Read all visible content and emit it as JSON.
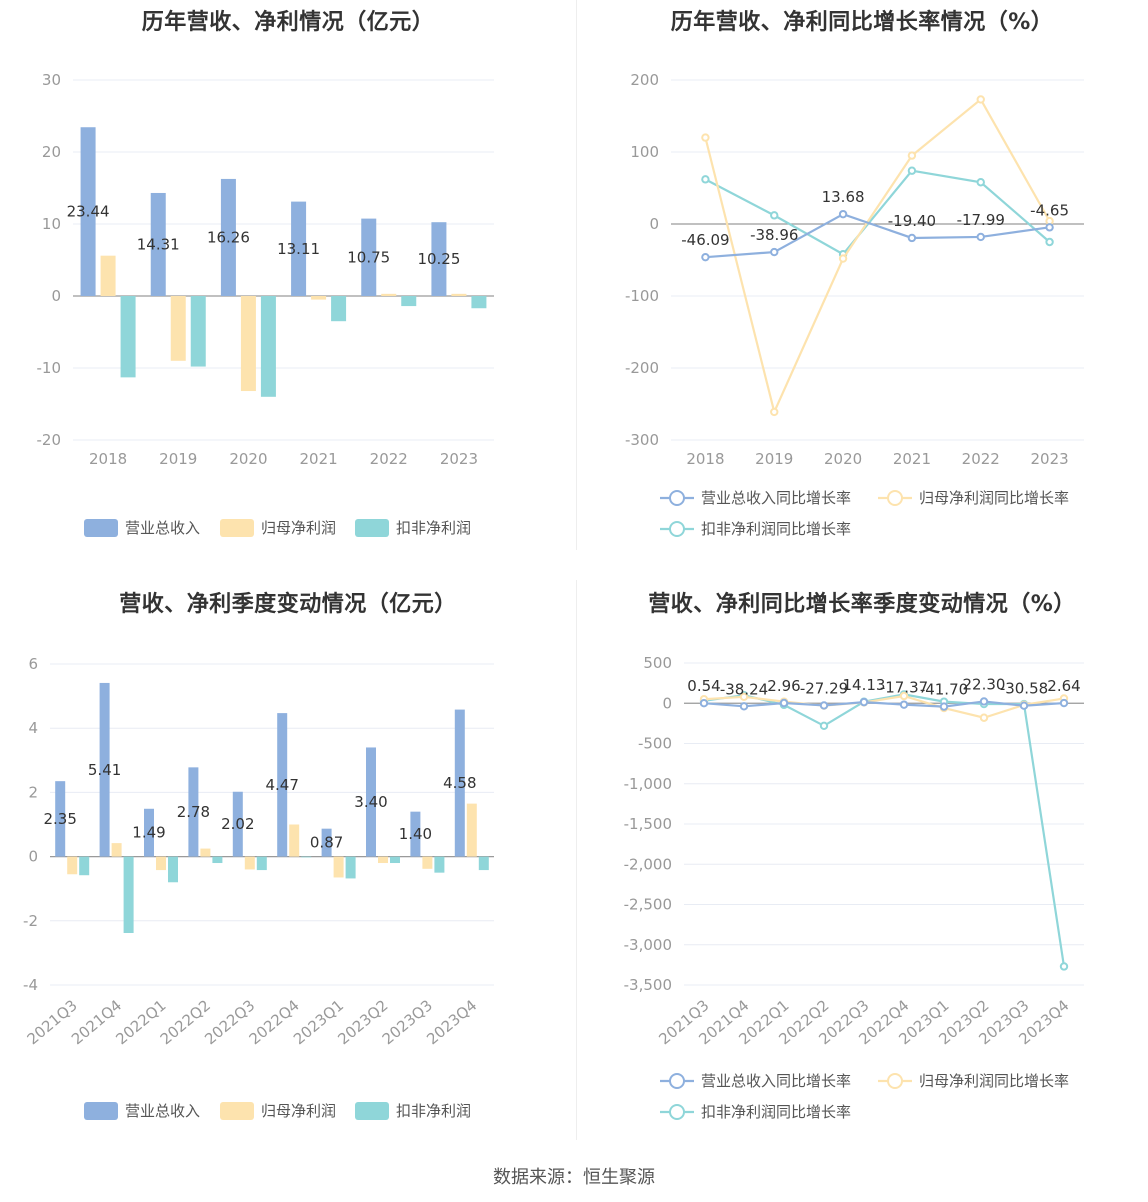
{
  "colors": {
    "revenue": "#8eb0de",
    "net_profit": "#fde3ae",
    "deducted_profit": "#8fd6d9"
  },
  "source": "数据来源：恒生聚源",
  "chart_data": [
    {
      "type": "bar",
      "title": "历年营收、净利情况（亿元）",
      "categories": [
        "2018",
        "2019",
        "2020",
        "2021",
        "2022",
        "2023"
      ],
      "ylim": [
        -20,
        30
      ],
      "yticks": [
        "30",
        "20",
        "10",
        "0",
        "-10",
        "-20"
      ],
      "series": [
        {
          "name": "营业总收入",
          "values": [
            23.44,
            14.31,
            16.26,
            13.11,
            10.75,
            10.25
          ],
          "labels": [
            "23.44",
            "14.31",
            "16.26",
            "13.11",
            "10.75",
            "10.25"
          ]
        },
        {
          "name": "归母净利润",
          "values": [
            5.6,
            -9.0,
            -13.2,
            -0.5,
            0.3,
            0.3
          ]
        },
        {
          "name": "扣非净利润",
          "values": [
            -11.3,
            -9.8,
            -14.0,
            -3.5,
            -1.4,
            -1.7
          ]
        }
      ],
      "legend": "bottom"
    },
    {
      "type": "line",
      "title": "历年营收、净利同比增长率情况（%）",
      "categories": [
        "2018",
        "2019",
        "2020",
        "2021",
        "2022",
        "2023"
      ],
      "ylim": [
        -300,
        200
      ],
      "yticks": [
        "200",
        "100",
        "0",
        "-100",
        "-200",
        "-300"
      ],
      "series": [
        {
          "name": "营业总收入同比增长率",
          "values": [
            -46.09,
            -38.96,
            13.68,
            -19.4,
            -17.99,
            -4.65
          ],
          "labels": [
            "-46.09",
            "-38.96",
            "13.68",
            "-19.40",
            "-17.99",
            "-4.65"
          ]
        },
        {
          "name": "归母净利润同比增长率",
          "values": [
            120,
            -261,
            -48,
            95,
            173,
            4
          ]
        },
        {
          "name": "扣非净利润同比增长率",
          "values": [
            62,
            12,
            -42,
            74,
            58,
            -25
          ]
        }
      ],
      "legend": "bottom"
    },
    {
      "type": "bar",
      "title": "营收、净利季度变动情况（亿元）",
      "categories": [
        "2021Q3",
        "2021Q4",
        "2022Q1",
        "2022Q2",
        "2022Q3",
        "2022Q4",
        "2023Q1",
        "2023Q2",
        "2023Q3",
        "2023Q4"
      ],
      "ylim": [
        -4,
        6
      ],
      "yticks": [
        "6",
        "4",
        "2",
        "0",
        "-2",
        "-4"
      ],
      "series": [
        {
          "name": "营业总收入",
          "values": [
            2.35,
            5.41,
            1.49,
            2.78,
            2.02,
            4.47,
            0.87,
            3.4,
            1.4,
            4.58
          ],
          "labels": [
            "2.35",
            "5.41",
            "1.49",
            "2.78",
            "2.02",
            "4.47",
            "0.87",
            "3.40",
            "1.40",
            "4.58"
          ]
        },
        {
          "name": "归母净利润",
          "values": [
            -0.55,
            0.42,
            -0.42,
            0.25,
            -0.4,
            1.0,
            -0.65,
            -0.2,
            -0.38,
            1.65
          ]
        },
        {
          "name": "扣非净利润",
          "values": [
            -0.58,
            -2.38,
            -0.8,
            -0.2,
            -0.42,
            0.0,
            -0.68,
            -0.2,
            -0.5,
            -0.42
          ]
        }
      ],
      "legend": "bottom"
    },
    {
      "type": "line",
      "title": "营收、净利同比增长率季度变动情况（%）",
      "categories": [
        "2021Q3",
        "2021Q4",
        "2022Q1",
        "2022Q2",
        "2022Q3",
        "2022Q4",
        "2023Q1",
        "2023Q2",
        "2023Q3",
        "2023Q4"
      ],
      "ylim": [
        -3500,
        500
      ],
      "yticks": [
        "500",
        "0",
        "-500",
        "-1,000",
        "-1,500",
        "-2,000",
        "-2,500",
        "-3,000",
        "-3,500"
      ],
      "series": [
        {
          "name": "营业总收入同比增长率",
          "values": [
            0.54,
            -38.24,
            2.96,
            -27.29,
            14.13,
            -17.37,
            -41.7,
            22.3,
            -30.58,
            2.64
          ],
          "labels": [
            "0.54",
            "-38.24",
            "2.96",
            "-27.29",
            "14.13",
            "-17.37",
            "-41.70",
            "22.30",
            "-30.58",
            "2.64"
          ]
        },
        {
          "name": "归母净利润同比增长率",
          "values": [
            50,
            80,
            20,
            -30,
            10,
            90,
            -60,
            -180,
            -20,
            60
          ]
        },
        {
          "name": "扣非净利润同比增长率",
          "values": [
            30,
            100,
            -20,
            -280,
            20,
            110,
            20,
            -10,
            -10,
            -3270
          ]
        }
      ],
      "legend": "bottom"
    }
  ]
}
